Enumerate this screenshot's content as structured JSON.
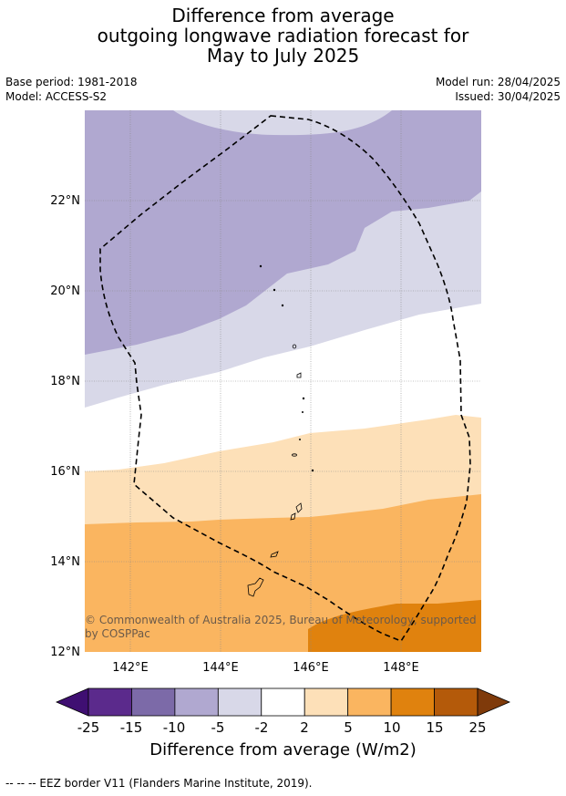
{
  "title": {
    "line1": "Difference from average",
    "line2": "outgoing longwave radiation forecast for",
    "line3": "May to July 2025"
  },
  "meta": {
    "base_period": "Base period: 1981-2018",
    "model": "Model: ACCESS-S2",
    "model_run": "Model run: 28/04/2025",
    "issued": "Issued: 30/04/2025"
  },
  "map": {
    "lat_ticks": [
      "12°N",
      "14°N",
      "16°N",
      "18°N",
      "20°N",
      "22°N"
    ],
    "lon_ticks": [
      "142°E",
      "144°E",
      "146°E",
      "148°E"
    ],
    "copyright_line1": "© Commonwealth of Australia 2025, Bureau of Meteorology, supported",
    "copyright_line2": "by COSPPac"
  },
  "colorbar": {
    "label": "Difference from average (W/m2)",
    "ticks": [
      "-25",
      "-15",
      "-10",
      "-5",
      "-2",
      "2",
      "5",
      "10",
      "15",
      "25"
    ],
    "colors": [
      "#3f0f72",
      "#5b2a8c",
      "#7c6aa8",
      "#b0a8d0",
      "#d8d8e8",
      "#ffffff",
      "#fde0b8",
      "#fab560",
      "#e0820e",
      "#b45a0a",
      "#7f3a0a"
    ]
  },
  "footnote": "--  --  -- EEZ border V11 (Flanders Marine Institute, 2019)."
}
